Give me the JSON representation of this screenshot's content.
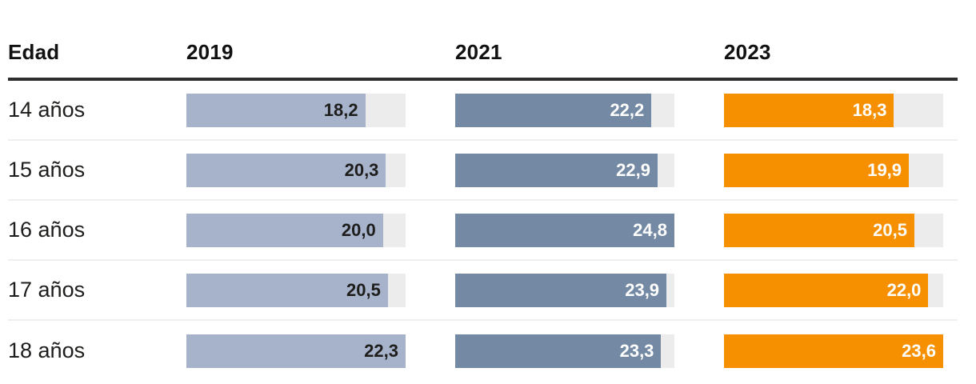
{
  "header": {
    "age_column": "Edad",
    "years": [
      "2019",
      "2021",
      "2023"
    ]
  },
  "rows": [
    {
      "age": "14 años",
      "values": [
        "18,2",
        "22,2",
        "18,3"
      ]
    },
    {
      "age": "15 años",
      "values": [
        "20,3",
        "22,9",
        "19,9"
      ]
    },
    {
      "age": "16 años",
      "values": [
        "20,0",
        "24,8",
        "20,5"
      ]
    },
    {
      "age": "17 años",
      "values": [
        "20,5",
        "23,9",
        "22,0"
      ]
    },
    {
      "age": "18 años",
      "values": [
        "22,3",
        "23,3",
        "23,6"
      ]
    }
  ],
  "colors": {
    "series": [
      "#a7b2cb",
      "#7489a3",
      "#f79000"
    ],
    "value_text": [
      "#1d1d1b",
      "#ffffff",
      "#ffffff"
    ],
    "track": "#ececec",
    "rule": "#2e2e2e"
  },
  "chart_data": {
    "type": "bar",
    "orientation": "horizontal",
    "title": "",
    "xlabel": "",
    "ylabel": "Edad",
    "categories": [
      "14 años",
      "15 años",
      "16 años",
      "17 años",
      "18 años"
    ],
    "series": [
      {
        "name": "2019",
        "values": [
          18.2,
          20.3,
          20.0,
          20.5,
          22.3
        ]
      },
      {
        "name": "2021",
        "values": [
          22.2,
          22.9,
          24.8,
          23.9,
          23.3
        ]
      },
      {
        "name": "2023",
        "values": [
          18.3,
          19.9,
          20.5,
          22.0,
          23.6
        ]
      }
    ],
    "value_label_format": "decimal-comma, one decimal place, shown inside right end of each bar",
    "scale_note": "each year column's bars are scaled to that column's maximum value; gray track shows the column maximum extent",
    "grid": false,
    "legend": "column headers act as series labels"
  }
}
